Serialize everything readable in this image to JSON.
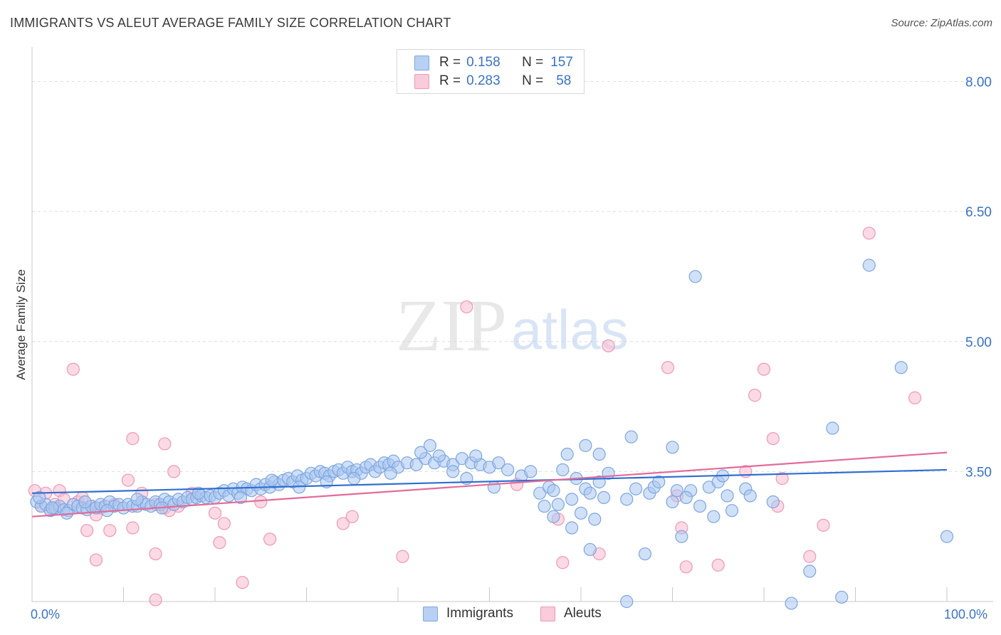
{
  "header": {
    "title": "IMMIGRANTS VS ALEUT AVERAGE FAMILY SIZE CORRELATION CHART",
    "source": "Source: ZipAtlas.com"
  },
  "watermark": {
    "zip": "ZIP",
    "atlas": "atlas"
  },
  "legend_top": {
    "rows": [
      {
        "r_label": "R = ",
        "r_value": "0.158",
        "n_label": "N = ",
        "n_value": "157"
      },
      {
        "r_label": "R = ",
        "r_value": "0.283",
        "n_label": "N = ",
        "n_value": "58"
      }
    ]
  },
  "legend_bottom": {
    "items": [
      "Immigrants",
      "Aleuts"
    ]
  },
  "colors": {
    "immigrants_fill": "#a9c6f0",
    "immigrants_stroke": "#7ea6e0",
    "immigrants_line": "#2f6fd0",
    "aleuts_fill": "#f7bcd0",
    "aleuts_stroke": "#ef98b6",
    "aleuts_line": "#e46b98",
    "tick_label": "#3b72c7",
    "grid": "#dedede"
  },
  "chart_data": {
    "type": "scatter",
    "title": "IMMIGRANTS VS ALEUT AVERAGE FAMILY SIZE CORRELATION CHART",
    "xlabel": "",
    "ylabel": "Average Family Size",
    "xlim": [
      0,
      100
    ],
    "ylim": [
      2.0,
      8.3
    ],
    "x_tick_labels": [
      "0.0%",
      "100.0%"
    ],
    "y_ticks": [
      3.5,
      5.0,
      6.5,
      8.0
    ],
    "y_tick_labels": [
      "3.50",
      "5.00",
      "6.50",
      "8.00"
    ],
    "grid": true,
    "legend_position": "top-center",
    "series": [
      {
        "name": "Immigrants",
        "r": 0.158,
        "n": 157,
        "trend": [
          [
            0,
            3.25
          ],
          [
            100,
            3.52
          ]
        ],
        "points": [
          [
            0.5,
            3.15
          ],
          [
            1.0,
            3.1
          ],
          [
            1.5,
            3.12
          ],
          [
            2.0,
            3.05
          ],
          [
            2.5,
            3.08
          ],
          [
            3.0,
            3.1
          ],
          [
            3.5,
            3.06
          ],
          [
            4.0,
            3.05
          ],
          [
            4.5,
            3.12
          ],
          [
            5.0,
            3.1
          ],
          [
            5.5,
            3.08
          ],
          [
            6.0,
            3.06
          ],
          [
            6.5,
            3.1
          ],
          [
            7.0,
            3.08
          ],
          [
            7.5,
            3.12
          ],
          [
            8.0,
            3.1
          ],
          [
            8.5,
            3.15
          ],
          [
            9.0,
            3.1
          ],
          [
            9.5,
            3.12
          ],
          [
            10.0,
            3.08
          ],
          [
            10.5,
            3.12
          ],
          [
            11.0,
            3.1
          ],
          [
            11.5,
            3.1
          ],
          [
            12.0,
            3.15
          ],
          [
            12.5,
            3.12
          ],
          [
            13.0,
            3.1
          ],
          [
            13.5,
            3.15
          ],
          [
            14.0,
            3.12
          ],
          [
            14.5,
            3.18
          ],
          [
            15.0,
            3.15
          ],
          [
            15.5,
            3.12
          ],
          [
            16.0,
            3.18
          ],
          [
            16.5,
            3.15
          ],
          [
            17.0,
            3.2
          ],
          [
            17.5,
            3.18
          ],
          [
            18.0,
            3.2
          ],
          [
            18.5,
            3.22
          ],
          [
            19.0,
            3.2
          ],
          [
            19.5,
            3.22
          ],
          [
            20.0,
            3.2
          ],
          [
            20.5,
            3.25
          ],
          [
            21.0,
            3.28
          ],
          [
            21.5,
            3.22
          ],
          [
            22.0,
            3.3
          ],
          [
            22.5,
            3.25
          ],
          [
            23.0,
            3.32
          ],
          [
            23.5,
            3.3
          ],
          [
            24.0,
            3.28
          ],
          [
            24.5,
            3.35
          ],
          [
            25.0,
            3.3
          ],
          [
            25.5,
            3.35
          ],
          [
            26.0,
            3.32
          ],
          [
            26.5,
            3.38
          ],
          [
            27.0,
            3.35
          ],
          [
            27.5,
            3.4
          ],
          [
            28.0,
            3.42
          ],
          [
            28.5,
            3.38
          ],
          [
            29.0,
            3.45
          ],
          [
            29.5,
            3.4
          ],
          [
            30.0,
            3.42
          ],
          [
            30.5,
            3.48
          ],
          [
            31.0,
            3.45
          ],
          [
            31.5,
            3.5
          ],
          [
            32.0,
            3.48
          ],
          [
            32.5,
            3.45
          ],
          [
            33.0,
            3.5
          ],
          [
            33.5,
            3.52
          ],
          [
            34.0,
            3.48
          ],
          [
            34.5,
            3.55
          ],
          [
            35.0,
            3.5
          ],
          [
            35.5,
            3.52
          ],
          [
            36.0,
            3.48
          ],
          [
            36.5,
            3.55
          ],
          [
            37.0,
            3.58
          ],
          [
            37.5,
            3.5
          ],
          [
            38.0,
            3.55
          ],
          [
            38.5,
            3.6
          ],
          [
            39.0,
            3.58
          ],
          [
            39.5,
            3.62
          ],
          [
            40.0,
            3.55
          ],
          [
            41.0,
            3.6
          ],
          [
            42.0,
            3.58
          ],
          [
            43.0,
            3.65
          ],
          [
            44.0,
            3.6
          ],
          [
            45.0,
            3.62
          ],
          [
            46.0,
            3.58
          ],
          [
            47.0,
            3.65
          ],
          [
            48.0,
            3.6
          ],
          [
            49.0,
            3.58
          ],
          [
            50.0,
            3.55
          ],
          [
            0.8,
            3.2
          ],
          [
            2.2,
            3.08
          ],
          [
            3.8,
            3.02
          ],
          [
            5.8,
            3.15
          ],
          [
            8.2,
            3.05
          ],
          [
            11.5,
            3.18
          ],
          [
            14.2,
            3.08
          ],
          [
            18.2,
            3.25
          ],
          [
            22.8,
            3.2
          ],
          [
            26.2,
            3.4
          ],
          [
            29.2,
            3.32
          ],
          [
            32.2,
            3.38
          ],
          [
            35.2,
            3.42
          ],
          [
            39.2,
            3.48
          ],
          [
            42.5,
            3.72
          ],
          [
            43.5,
            3.8
          ],
          [
            44.5,
            3.68
          ],
          [
            46.0,
            3.5
          ],
          [
            47.5,
            3.42
          ],
          [
            48.5,
            3.68
          ],
          [
            50.5,
            3.32
          ],
          [
            51.0,
            3.6
          ],
          [
            52.0,
            3.52
          ],
          [
            53.5,
            3.45
          ],
          [
            54.5,
            3.5
          ],
          [
            55.5,
            3.25
          ],
          [
            56.5,
            3.32
          ],
          [
            57.0,
            3.28
          ],
          [
            58.0,
            3.52
          ],
          [
            58.5,
            3.7
          ],
          [
            59.5,
            3.42
          ],
          [
            60.5,
            3.3
          ],
          [
            61.0,
            3.25
          ],
          [
            62.0,
            3.38
          ],
          [
            63.0,
            3.48
          ],
          [
            56.0,
            3.1
          ],
          [
            57.5,
            3.12
          ],
          [
            59.0,
            3.18
          ],
          [
            60.0,
            3.02
          ],
          [
            62.5,
            3.2
          ],
          [
            65.0,
            3.18
          ],
          [
            66.0,
            3.3
          ],
          [
            67.5,
            3.25
          ],
          [
            68.0,
            3.32
          ],
          [
            70.0,
            3.15
          ],
          [
            72.0,
            3.28
          ],
          [
            74.0,
            3.32
          ],
          [
            76.0,
            3.22
          ],
          [
            78.0,
            3.3
          ],
          [
            75.0,
            3.38
          ],
          [
            73.0,
            3.1
          ],
          [
            70.5,
            3.28
          ],
          [
            68.5,
            3.38
          ],
          [
            71.5,
            3.2
          ],
          [
            60.5,
            3.8
          ],
          [
            62.0,
            3.7
          ],
          [
            65.5,
            3.9
          ],
          [
            70.0,
            3.78
          ],
          [
            75.5,
            3.45
          ],
          [
            78.5,
            3.22
          ],
          [
            81.0,
            3.15
          ],
          [
            76.5,
            3.05
          ],
          [
            74.5,
            2.98
          ],
          [
            71.0,
            2.75
          ],
          [
            67.0,
            2.55
          ],
          [
            59.0,
            2.85
          ],
          [
            61.0,
            2.6
          ],
          [
            57.0,
            2.98
          ],
          [
            61.5,
            2.95
          ],
          [
            72.5,
            5.75
          ],
          [
            91.5,
            5.88
          ],
          [
            95.0,
            4.7
          ],
          [
            87.5,
            4.0
          ],
          [
            100.0,
            2.75
          ],
          [
            85.0,
            2.35
          ],
          [
            65.0,
            2.0
          ],
          [
            83.0,
            1.98
          ],
          [
            88.5,
            2.05
          ]
        ]
      },
      {
        "name": "Aleuts",
        "r": 0.283,
        "n": 58,
        "trend": [
          [
            0,
            2.98
          ],
          [
            100,
            3.72
          ]
        ],
        "points": [
          [
            0.3,
            3.28
          ],
          [
            1.0,
            3.1
          ],
          [
            1.5,
            3.25
          ],
          [
            2.0,
            3.05
          ],
          [
            2.5,
            3.12
          ],
          [
            3.0,
            3.28
          ],
          [
            3.5,
            3.18
          ],
          [
            5.0,
            3.15
          ],
          [
            5.5,
            3.2
          ],
          [
            6.5,
            3.1
          ],
          [
            7.0,
            3.0
          ],
          [
            7.5,
            3.08
          ],
          [
            9.0,
            3.12
          ],
          [
            10.5,
            3.4
          ],
          [
            11.0,
            3.88
          ],
          [
            12.0,
            3.25
          ],
          [
            13.5,
            3.12
          ],
          [
            14.5,
            3.08
          ],
          [
            15.0,
            3.05
          ],
          [
            16.0,
            3.1
          ],
          [
            4.5,
            4.68
          ],
          [
            14.5,
            3.82
          ],
          [
            15.5,
            3.5
          ],
          [
            20.0,
            3.02
          ],
          [
            20.5,
            2.68
          ],
          [
            21.0,
            2.9
          ],
          [
            6.0,
            2.82
          ],
          [
            8.5,
            2.82
          ],
          [
            11.0,
            2.85
          ],
          [
            7.0,
            2.48
          ],
          [
            13.5,
            2.55
          ],
          [
            13.5,
            2.02
          ],
          [
            17.5,
            3.25
          ],
          [
            23.0,
            2.22
          ],
          [
            25.0,
            3.15
          ],
          [
            26.0,
            2.72
          ],
          [
            34.0,
            2.9
          ],
          [
            35.0,
            2.98
          ],
          [
            40.5,
            2.52
          ],
          [
            47.5,
            5.4
          ],
          [
            53.0,
            3.35
          ],
          [
            57.5,
            2.95
          ],
          [
            58.0,
            2.45
          ],
          [
            62.0,
            2.55
          ],
          [
            63.0,
            4.95
          ],
          [
            69.5,
            4.7
          ],
          [
            70.5,
            3.22
          ],
          [
            71.0,
            2.85
          ],
          [
            71.5,
            2.4
          ],
          [
            75.0,
            2.42
          ],
          [
            78.0,
            3.5
          ],
          [
            79.0,
            4.38
          ],
          [
            80.0,
            4.68
          ],
          [
            81.0,
            3.88
          ],
          [
            81.5,
            3.1
          ],
          [
            82.0,
            3.42
          ],
          [
            85.0,
            2.52
          ],
          [
            86.5,
            2.88
          ],
          [
            91.5,
            6.25
          ],
          [
            96.5,
            4.35
          ]
        ]
      }
    ]
  }
}
